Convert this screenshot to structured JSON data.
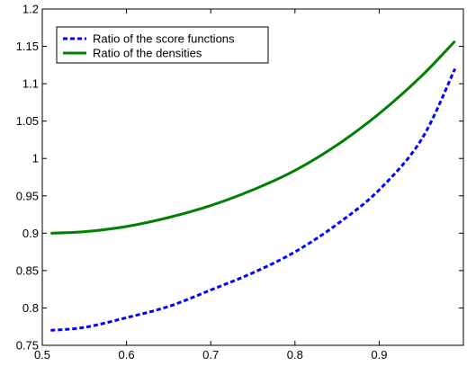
{
  "chart_data": {
    "type": "line",
    "title": "",
    "xlabel": "",
    "ylabel": "",
    "xlim": [
      0.5,
      1.0
    ],
    "ylim": [
      0.75,
      1.2
    ],
    "xticks": [
      0.5,
      0.6,
      0.7,
      0.8,
      0.9
    ],
    "xtick_labels": [
      "0.5",
      "0.6",
      "0.7",
      "0.8",
      "0.9"
    ],
    "yticks": [
      0.75,
      0.8,
      0.85,
      0.9,
      0.95,
      1.0,
      1.05,
      1.1,
      1.15,
      1.2
    ],
    "ytick_labels": [
      "0.75",
      "0.8",
      "0.85",
      "0.9",
      "0.95",
      "1",
      "1.05",
      "1.1",
      "1.15",
      "1.2"
    ],
    "grid": false,
    "legend_position": "top-left",
    "series": [
      {
        "name": "Ratio of the score functions",
        "color": "#0000ff",
        "style": "dashed",
        "x": [
          0.51,
          0.55,
          0.6,
          0.65,
          0.7,
          0.75,
          0.8,
          0.85,
          0.9,
          0.95,
          0.99
        ],
        "y": [
          0.77,
          0.774,
          0.787,
          0.802,
          0.824,
          0.847,
          0.875,
          0.912,
          0.958,
          1.025,
          1.12
        ]
      },
      {
        "name": "Ratio of the densities",
        "color": "#008000",
        "style": "solid",
        "x": [
          0.51,
          0.55,
          0.6,
          0.65,
          0.7,
          0.75,
          0.8,
          0.85,
          0.9,
          0.95,
          0.99
        ],
        "y": [
          0.9,
          0.902,
          0.909,
          0.921,
          0.937,
          0.958,
          0.984,
          1.018,
          1.06,
          1.11,
          1.157
        ]
      }
    ]
  }
}
